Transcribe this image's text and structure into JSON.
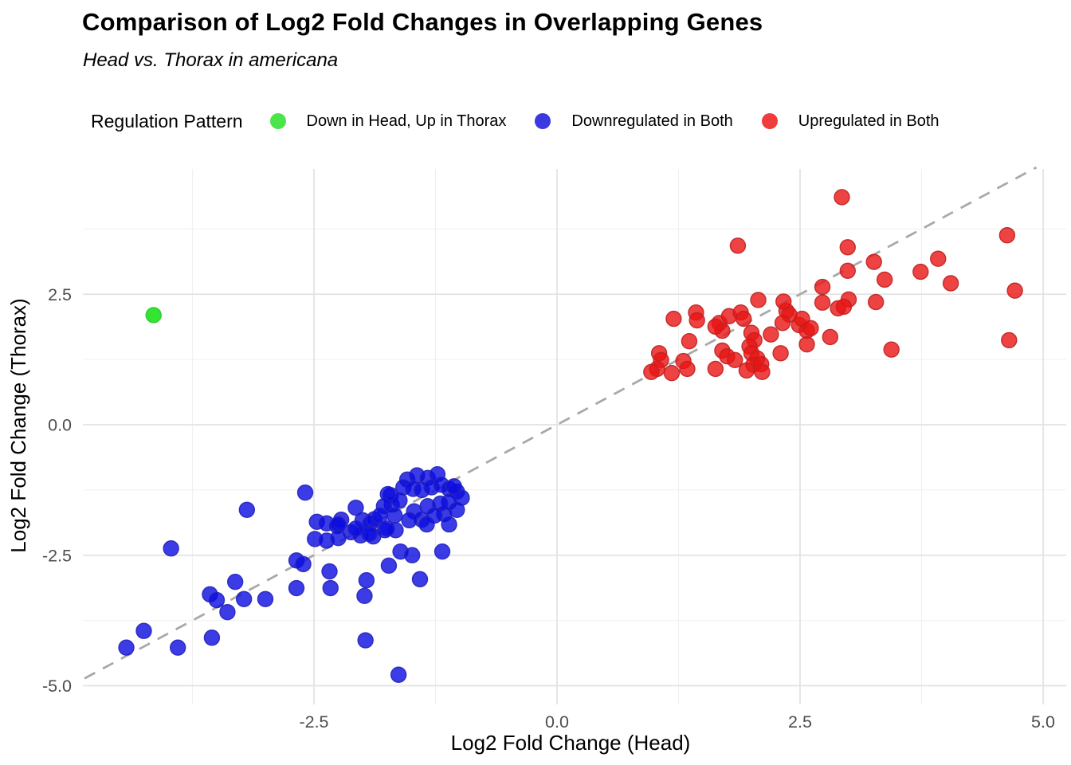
{
  "title": "Comparison of Log2 Fold Changes in Overlapping Genes",
  "subtitle": "Head vs. Thorax in americana",
  "legend": {
    "title": "Regulation Pattern",
    "items": [
      {
        "label": "Down in Head, Up in Thorax",
        "color": "#49E549"
      },
      {
        "label": "Downregulated in Both",
        "color": "#3A3AE0"
      },
      {
        "label": "Upregulated in Both",
        "color": "#F03C3C"
      }
    ]
  },
  "axes": {
    "x": {
      "label": "Log2 Fold Change (Head)",
      "major_ticks": [
        -2.5,
        0,
        2.5,
        5
      ],
      "tick_labels": [
        "-2.5",
        "0.0",
        "2.5",
        "5.0"
      ],
      "minor_ticks": [
        -3.75,
        -1.25,
        1.25,
        3.75
      ],
      "range": [
        -4.9,
        5.2
      ]
    },
    "y": {
      "label": "Log2 Fold Change (Thorax)",
      "major_ticks": [
        2.5,
        0,
        -2.5,
        -5
      ],
      "tick_labels": [
        "2.5",
        "0.0",
        "-2.5",
        "-5.0"
      ],
      "minor_ticks": [
        3.75,
        1.25,
        -1.25,
        -3.75
      ],
      "range": [
        -5.3,
        4.9
      ]
    }
  },
  "reference_line": {
    "type": "identity",
    "slope": 1,
    "intercept": 0,
    "style": "dashed",
    "color": "#A9A9A9"
  },
  "colors": {
    "grid_major": "#E2E2E2",
    "grid_minor": "#F0F0F0",
    "tick_text": "#4D4D4D",
    "green_fill": "#00DD00",
    "green_stroke": "#2FC42F",
    "blue_fill": "#0B0BE0",
    "blue_stroke": "#2323BB",
    "red_fill": "#E81414",
    "red_stroke": "#C02020"
  },
  "chart_data": {
    "type": "scatter",
    "title": "Comparison of Log2 Fold Changes in Overlapping Genes",
    "xlabel": "Log2 Fold Change (Head)",
    "ylabel": "Log2 Fold Change (Thorax)",
    "xlim": [
      -4.9,
      5.2
    ],
    "ylim": [
      -5.3,
      4.9
    ],
    "grid": true,
    "legend_position": "top",
    "series": [
      {
        "name": "Down in Head, Up in Thorax",
        "fill": "#00DD00",
        "stroke": "#2FC42F",
        "points": [
          [
            -4.15,
            2.1
          ]
        ]
      },
      {
        "name": "Downregulated in Both",
        "fill": "#0B0BE0",
        "stroke": "#2323BB",
        "points": [
          [
            -1.54,
            -1.05
          ],
          [
            -1.44,
            -0.97
          ],
          [
            -1.33,
            -1.02
          ],
          [
            -1.23,
            -0.95
          ],
          [
            -1.58,
            -1.2
          ],
          [
            -1.48,
            -1.23
          ],
          [
            -1.39,
            -1.25
          ],
          [
            -1.29,
            -1.2
          ],
          [
            -1.19,
            -1.15
          ],
          [
            -1.11,
            -1.23
          ],
          [
            -1.03,
            -1.28
          ],
          [
            -0.98,
            -1.4
          ],
          [
            -1.71,
            -1.35
          ],
          [
            -1.7,
            -1.53
          ],
          [
            -1.62,
            -1.45
          ],
          [
            -1.06,
            -1.18
          ],
          [
            -1.11,
            -1.48
          ],
          [
            -1.03,
            -1.63
          ],
          [
            -1.16,
            -1.71
          ],
          [
            -1.2,
            -1.51
          ],
          [
            -1.33,
            -1.56
          ],
          [
            -1.26,
            -1.74
          ],
          [
            -1.39,
            -1.82
          ],
          [
            -1.47,
            -1.66
          ],
          [
            -1.52,
            -1.83
          ],
          [
            -1.34,
            -1.91
          ],
          [
            -1.11,
            -1.91
          ],
          [
            -1.74,
            -1.33
          ],
          [
            -1.78,
            -1.56
          ],
          [
            -1.67,
            -1.74
          ],
          [
            -2.07,
            -1.59
          ],
          [
            -2.0,
            -1.83
          ],
          [
            -1.92,
            -1.89
          ],
          [
            -2.22,
            -1.82
          ],
          [
            -2.26,
            -1.94
          ],
          [
            -2.12,
            -2.06
          ],
          [
            -2.02,
            -2.12
          ],
          [
            -1.89,
            -2.14
          ],
          [
            -1.77,
            -2.02
          ],
          [
            -1.66,
            -2.02
          ],
          [
            -1.88,
            -1.81
          ],
          [
            -1.82,
            -1.74
          ],
          [
            -1.75,
            -1.99
          ],
          [
            -1.93,
            -2.09
          ],
          [
            -2.07,
            -1.99
          ],
          [
            -2.59,
            -1.3
          ],
          [
            -2.47,
            -1.86
          ],
          [
            -2.37,
            -1.89
          ],
          [
            -2.25,
            -1.91
          ],
          [
            -2.49,
            -2.19
          ],
          [
            -2.37,
            -2.22
          ],
          [
            -2.25,
            -2.17
          ],
          [
            -3.19,
            -1.63
          ],
          [
            -1.61,
            -2.43
          ],
          [
            -1.49,
            -2.5
          ],
          [
            -1.18,
            -2.43
          ],
          [
            -2.68,
            -2.6
          ],
          [
            -2.61,
            -2.67
          ],
          [
            -2.34,
            -2.81
          ],
          [
            -2.33,
            -3.13
          ],
          [
            -2.68,
            -3.13
          ],
          [
            -1.96,
            -2.98
          ],
          [
            -1.98,
            -3.28
          ],
          [
            -1.73,
            -2.7
          ],
          [
            -1.41,
            -2.96
          ],
          [
            -3.97,
            -2.37
          ],
          [
            -3.31,
            -3.01
          ],
          [
            -3.22,
            -3.34
          ],
          [
            -3.0,
            -3.34
          ],
          [
            -3.57,
            -3.25
          ],
          [
            -3.5,
            -3.36
          ],
          [
            -3.39,
            -3.59
          ],
          [
            -3.55,
            -4.08
          ],
          [
            -4.25,
            -3.95
          ],
          [
            -4.43,
            -4.27
          ],
          [
            -3.9,
            -4.27
          ],
          [
            -1.97,
            -4.13
          ],
          [
            -1.63,
            -4.79
          ]
        ]
      },
      {
        "name": "Upregulated in Both",
        "fill": "#E81414",
        "stroke": "#C02020",
        "points": [
          [
            1.2,
            2.03
          ],
          [
            1.43,
            2.15
          ],
          [
            1.44,
            2.0
          ],
          [
            1.67,
            1.95
          ],
          [
            1.77,
            2.08
          ],
          [
            1.89,
            2.15
          ],
          [
            1.92,
            2.03
          ],
          [
            2.07,
            2.39
          ],
          [
            1.7,
            1.8
          ],
          [
            1.63,
            1.88
          ],
          [
            2.0,
            1.76
          ],
          [
            2.03,
            1.62
          ],
          [
            2.2,
            1.73
          ],
          [
            2.36,
            2.18
          ],
          [
            2.39,
            2.11
          ],
          [
            2.32,
            1.95
          ],
          [
            2.49,
            1.91
          ],
          [
            2.52,
            2.03
          ],
          [
            2.57,
            1.8
          ],
          [
            2.61,
            1.85
          ],
          [
            2.73,
            2.64
          ],
          [
            2.89,
            2.23
          ],
          [
            2.73,
            2.34
          ],
          [
            2.81,
            1.68
          ],
          [
            2.57,
            1.54
          ],
          [
            1.36,
            1.6
          ],
          [
            1.05,
            1.37
          ],
          [
            1.07,
            1.24
          ],
          [
            1.03,
            1.07
          ],
          [
            0.97,
            1.01
          ],
          [
            1.18,
            0.99
          ],
          [
            1.3,
            1.22
          ],
          [
            1.34,
            1.07
          ],
          [
            1.7,
            1.42
          ],
          [
            1.75,
            1.31
          ],
          [
            1.83,
            1.24
          ],
          [
            1.63,
            1.07
          ],
          [
            1.98,
            1.5
          ],
          [
            2.0,
            1.37
          ],
          [
            2.06,
            1.27
          ],
          [
            2.02,
            1.15
          ],
          [
            2.1,
            1.16
          ],
          [
            2.3,
            1.37
          ],
          [
            2.11,
            1.01
          ],
          [
            1.95,
            1.04
          ],
          [
            1.86,
            3.43
          ],
          [
            2.99,
            3.4
          ],
          [
            2.99,
            2.95
          ],
          [
            3.26,
            3.12
          ],
          [
            3.37,
            2.78
          ],
          [
            2.93,
            4.36
          ],
          [
            2.33,
            2.36
          ],
          [
            3.0,
            2.4
          ],
          [
            2.95,
            2.26
          ],
          [
            3.28,
            2.35
          ],
          [
            3.74,
            2.93
          ],
          [
            3.92,
            3.18
          ],
          [
            4.05,
            2.71
          ],
          [
            4.63,
            3.63
          ],
          [
            4.71,
            2.57
          ],
          [
            4.65,
            1.62
          ],
          [
            3.44,
            1.44
          ]
        ]
      }
    ]
  }
}
